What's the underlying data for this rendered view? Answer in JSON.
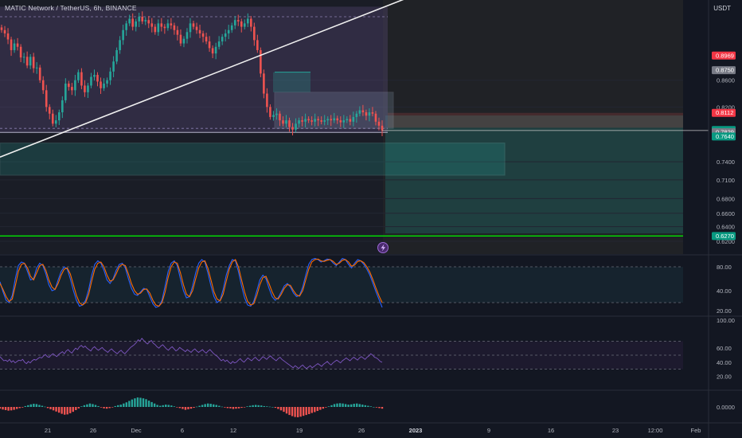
{
  "header": {
    "symbol_title": "MATIC Network / TetherUS, 6h, BINANCE",
    "currency": "USDT"
  },
  "colors": {
    "background": "#131722",
    "up": "#26a69a",
    "down": "#ef5350",
    "stoch_k": "#2962ff",
    "stoch_d": "#ff6d00",
    "rsi": "#7e57c2",
    "support_line": "#00e600",
    "resistance_zone": "#ef5350",
    "demand_zone": "#26a69a"
  },
  "chart_data": [
    {
      "type": "candlestick",
      "pane": "price",
      "x_ticks": [
        "21",
        "26",
        "Dec",
        "6",
        "12",
        "19",
        "26",
        "2023",
        "9",
        "16",
        "23",
        "12:00",
        "Feb"
      ],
      "y_ticks": [
        "0.8600",
        "0.8200",
        "0.7400",
        "0.7100",
        "0.6800",
        "0.6600",
        "0.6400",
        "0.6200"
      ],
      "price_labels": [
        {
          "text": "0.8969",
          "color": "#f23645"
        },
        {
          "text": "0.8750",
          "color": "#787b86"
        },
        {
          "text": "0.8112",
          "color": "#f23645"
        },
        {
          "text": "0.7848",
          "sub": "30:06",
          "color": "#089981"
        },
        {
          "text": "0.7829",
          "color": "#787b86"
        },
        {
          "text": "0.7640",
          "color": "#089981"
        },
        {
          "text": "0.6270",
          "color": "#089981"
        }
      ],
      "horizontal_levels": {
        "support": 0.627,
        "current": 0.7848
      },
      "zones": {
        "range_box": [
          0.782,
          0.97
        ],
        "demand_box": [
          0.718,
          0.766
        ],
        "consolidation_box": [
          0.788,
          0.842
        ],
        "resistance_band": [
          0.789,
          0.8112
        ]
      },
      "trendline": [
        [
          0,
          0.745
        ],
        [
          130,
          1.0
        ]
      ],
      "candles": {
        "count": 120,
        "close": [
          0.935,
          0.93,
          0.921,
          0.905,
          0.915,
          0.91,
          0.894,
          0.895,
          0.882,
          0.895,
          0.878,
          0.879,
          0.86,
          0.845,
          0.82,
          0.81,
          0.795,
          0.8,
          0.812,
          0.83,
          0.855,
          0.85,
          0.845,
          0.86,
          0.872,
          0.852,
          0.842,
          0.852,
          0.865,
          0.868,
          0.858,
          0.848,
          0.855,
          0.86,
          0.873,
          0.888,
          0.905,
          0.92,
          0.935,
          0.945,
          0.952,
          0.94,
          0.948,
          0.955,
          0.948,
          0.95,
          0.945,
          0.94,
          0.932,
          0.945,
          0.94,
          0.938,
          0.945,
          0.942,
          0.935,
          0.928,
          0.915,
          0.922,
          0.932,
          0.945,
          0.94,
          0.935,
          0.93,
          0.925,
          0.918,
          0.908,
          0.9,
          0.91,
          0.918,
          0.925,
          0.93,
          0.935,
          0.942,
          0.95,
          0.948,
          0.94,
          0.945,
          0.952,
          0.94,
          0.92,
          0.905,
          0.87,
          0.84,
          0.82,
          0.805,
          0.808,
          0.81,
          0.8,
          0.795,
          0.8,
          0.79,
          0.786,
          0.795,
          0.8,
          0.798,
          0.802,
          0.8,
          0.798,
          0.802,
          0.8,
          0.798,
          0.8,
          0.802,
          0.8,
          0.803,
          0.8,
          0.797,
          0.8,
          0.802,
          0.798,
          0.805,
          0.81,
          0.815,
          0.812,
          0.807,
          0.812,
          0.81,
          0.798,
          0.792,
          0.7848
        ]
      }
    },
    {
      "type": "line",
      "pane": "stochastic",
      "y_ticks": [
        "80.00",
        "40.00",
        "20.00"
      ],
      "levels": [
        80,
        20
      ],
      "series": [
        {
          "values": [
            55,
            38,
            24,
            20,
            32,
            60,
            82,
            88,
            86,
            72,
            58,
            60,
            78,
            86,
            82,
            68,
            50,
            40,
            42,
            58,
            72,
            80,
            76,
            60,
            40,
            24,
            14,
            16,
            24,
            42,
            66,
            84,
            90,
            86,
            74,
            58,
            52,
            60,
            74,
            84,
            86,
            78,
            60,
            44,
            34,
            32,
            38,
            44,
            42,
            30,
            18,
            12,
            14,
            24,
            48,
            72,
            86,
            90,
            82,
            60,
            40,
            28,
            30,
            48,
            70,
            86,
            92,
            88,
            70,
            48,
            30,
            20,
            24,
            42,
            66,
            82,
            92,
            90,
            72,
            48,
            28,
            16,
            14,
            22,
            40,
            58,
            66,
            60,
            44,
            30,
            24,
            28,
            38,
            48,
            52,
            46,
            36,
            30,
            32,
            46,
            66,
            84,
            92,
            94,
            92,
            88,
            90,
            93,
            92,
            86,
            82,
            88,
            94,
            92,
            84,
            78,
            86,
            92,
            90,
            84,
            76,
            66,
            52,
            38,
            25,
            12
          ]
        },
        {
          "values": [
            52,
            42,
            30,
            22,
            26,
            48,
            72,
            84,
            86,
            78,
            64,
            58,
            70,
            82,
            84,
            74,
            58,
            46,
            42,
            52,
            66,
            76,
            78,
            68,
            50,
            32,
            20,
            16,
            20,
            34,
            56,
            76,
            86,
            88,
            80,
            66,
            56,
            58,
            68,
            80,
            84,
            82,
            68,
            52,
            40,
            34,
            36,
            42,
            43,
            36,
            24,
            16,
            14,
            20,
            38,
            62,
            80,
            88,
            86,
            70,
            50,
            34,
            30,
            40,
            60,
            78,
            88,
            90,
            78,
            58,
            38,
            26,
            23,
            34,
            56,
            76,
            88,
            92,
            80,
            58,
            38,
            22,
            16,
            18,
            32,
            50,
            62,
            64,
            52,
            38,
            28,
            26,
            34,
            44,
            50,
            49,
            40,
            33,
            31,
            40,
            58,
            76,
            88,
            92,
            93,
            90,
            89,
            91,
            92,
            89,
            84,
            86,
            91,
            92,
            88,
            81,
            83,
            89,
            90,
            87,
            80,
            71,
            58,
            44,
            31,
            20
          ]
        }
      ]
    },
    {
      "type": "line",
      "pane": "rsi",
      "y_ticks": [
        "100.00",
        "60.00",
        "40.00",
        "20.00"
      ],
      "levels": [
        70,
        50,
        30
      ],
      "series": [
        {
          "values": [
            48,
            45,
            42,
            43,
            41,
            44,
            40,
            42,
            39,
            41,
            43,
            42,
            44,
            40,
            38,
            41,
            39,
            42,
            44,
            43,
            45,
            47,
            46,
            49,
            51,
            48,
            47,
            50,
            52,
            50,
            48,
            51,
            53,
            55,
            52,
            56,
            58,
            55,
            53,
            57,
            60,
            58,
            62,
            64,
            61,
            63,
            60,
            58,
            56,
            60,
            62,
            59,
            57,
            59,
            61,
            58,
            56,
            54,
            57,
            59,
            56,
            54,
            52,
            55,
            57,
            54,
            52,
            55,
            58,
            61,
            63,
            65,
            68,
            72,
            70,
            74,
            71,
            68,
            66,
            69,
            71,
            67,
            65,
            62,
            60,
            63,
            65,
            62,
            59,
            57,
            60,
            62,
            59,
            56,
            58,
            61,
            59,
            57,
            55,
            58,
            56,
            54,
            57,
            59,
            56,
            54,
            56,
            58,
            55,
            53,
            56,
            58,
            55,
            52,
            50,
            48,
            45,
            42,
            44,
            41,
            43,
            40,
            38,
            41,
            39,
            40,
            43,
            45,
            42,
            40,
            43,
            46,
            44,
            42,
            45,
            47,
            44,
            42,
            45,
            48,
            46,
            44,
            47,
            49,
            46,
            44,
            42,
            45,
            47,
            44,
            42,
            40,
            38,
            36,
            34,
            32,
            35,
            33,
            31,
            34,
            36,
            33,
            31,
            33,
            35,
            32,
            34,
            36,
            38,
            36,
            34,
            37,
            39,
            41,
            38,
            36,
            39,
            41,
            43,
            41,
            39,
            42,
            44,
            46,
            44,
            42,
            45,
            47,
            45,
            43,
            46,
            48,
            46,
            44,
            47,
            49,
            52,
            50,
            47,
            46,
            44,
            41,
            40
          ]
        }
      ]
    },
    {
      "type": "bar",
      "pane": "macd_histogram",
      "y_ticks": [
        "0.0000"
      ],
      "values": [
        -0.6,
        -0.9,
        -1.1,
        -1.3,
        -1.2,
        -1.0,
        -0.7,
        -0.4,
        -0.2,
        0.3,
        0.6,
        0.9,
        1.1,
        1.0,
        0.7,
        0.4,
        0.1,
        -0.4,
        -0.8,
        -1.2,
        -1.6,
        -2.0,
        -2.4,
        -2.7,
        -2.6,
        -2.2,
        -1.7,
        -1.1,
        -0.5,
        0.2,
        0.6,
        0.9,
        1.2,
        1.0,
        0.7,
        0.3,
        -0.2,
        -0.5,
        -0.6,
        -0.4,
        -0.1,
        0.3,
        0.6,
        0.8,
        1.2,
        1.6,
        2.1,
        2.6,
        3.0,
        3.3,
        3.2,
        3.0,
        2.7,
        2.2,
        1.7,
        1.2,
        0.7,
        0.4,
        0.6,
        0.8,
        0.7,
        0.5,
        0.2,
        -0.1,
        -0.4,
        -0.7,
        -1.0,
        -0.8,
        -0.6,
        -0.3,
        0.1,
        0.4,
        0.7,
        1.0,
        1.2,
        1.1,
        0.9,
        0.7,
        0.4,
        0.1,
        -0.2,
        -0.4,
        -0.5,
        -0.7,
        -0.6,
        -0.5,
        -0.3,
        -0.1,
        0.2,
        0.4,
        0.6,
        0.7,
        0.6,
        0.5,
        0.3,
        0.2,
        0.1,
        0.0,
        -0.3,
        -0.7,
        -1.2,
        -1.7,
        -2.3,
        -2.8,
        -3.2,
        -3.5,
        -3.6,
        -3.4,
        -3.1,
        -2.8,
        -2.5,
        -2.1,
        -1.8,
        -1.4,
        -1.0,
        -0.6,
        -0.2,
        0.2,
        0.6,
        1.0,
        1.2,
        1.3,
        1.2,
        1.0,
        0.8,
        0.9,
        1.1,
        1.2,
        1.0,
        0.8,
        0.6,
        0.4,
        0.2,
        0.0,
        -0.2,
        -0.4,
        -0.6
      ]
    }
  ]
}
